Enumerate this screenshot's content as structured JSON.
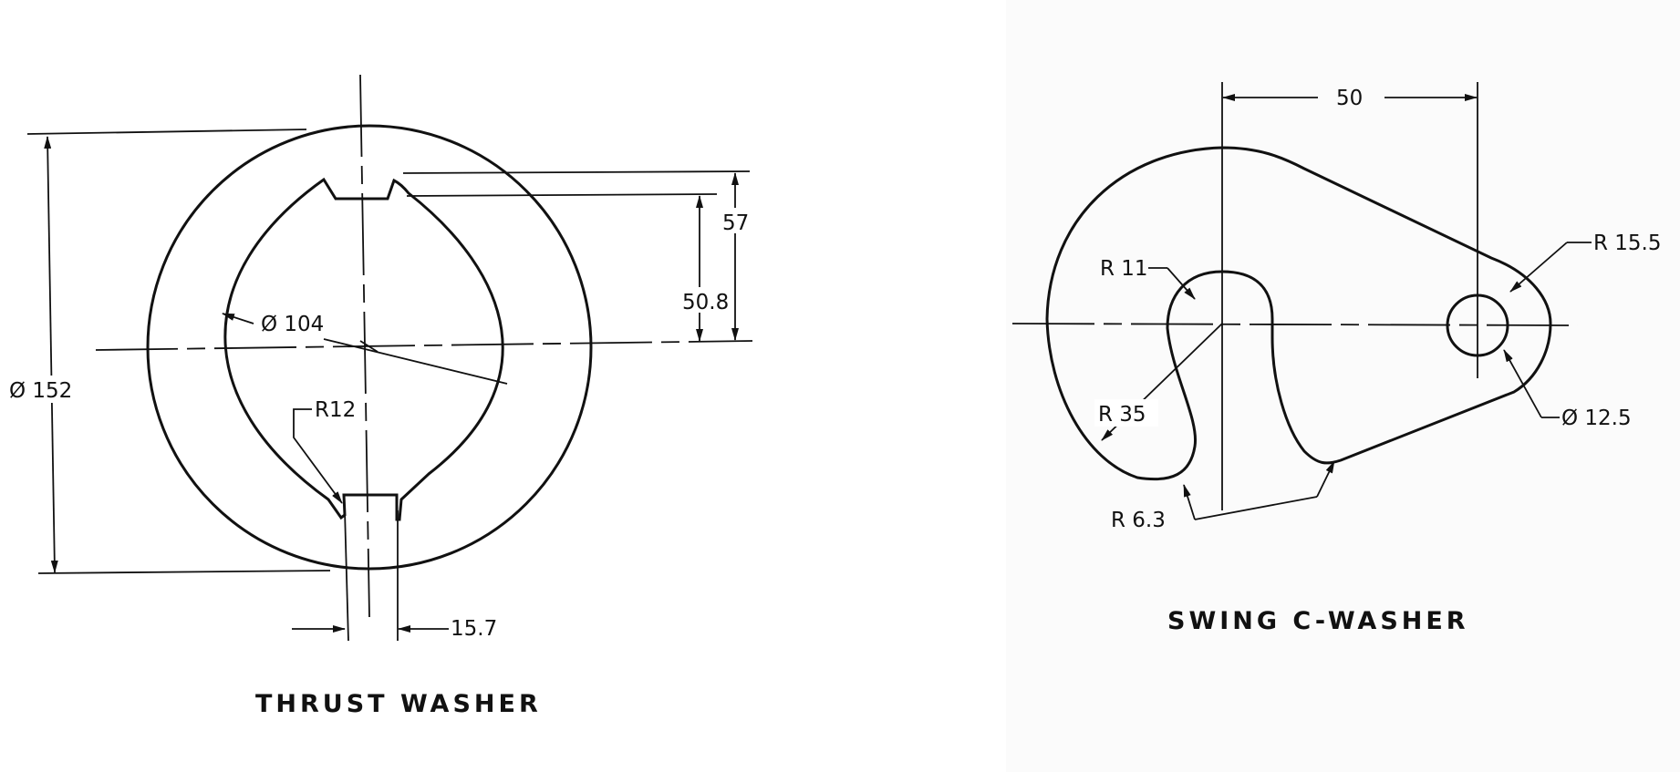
{
  "thrust_washer": {
    "title": "THRUST WASHER",
    "dims": {
      "outer_diameter": "Ø 152",
      "inner_diameter": "Ø 104",
      "height_57": "57",
      "height_50_8": "50.8",
      "radius_r12": "R12",
      "slot_width": "15.7"
    }
  },
  "swing_c_washer": {
    "title": "SWING C-WASHER",
    "dims": {
      "center_distance": "50",
      "r15_5": "R 15.5",
      "r11": "R 11",
      "r35": "R 35",
      "hole_diameter": "Ø 12.5",
      "r6_3": "R 6.3"
    }
  }
}
